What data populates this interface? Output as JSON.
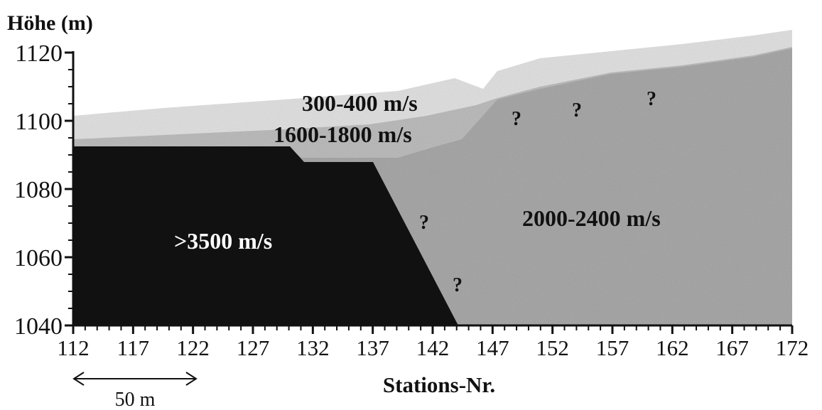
{
  "figure": {
    "y_axis_label": "Höhe (m)",
    "x_axis_label": "Stations-Nr.",
    "y_ticks": [
      1120,
      1100,
      1080,
      1060,
      1040
    ],
    "x_ticks": [
      112,
      117,
      122,
      127,
      132,
      137,
      142,
      147,
      152,
      157,
      162,
      167,
      172
    ],
    "scale_bar_label": "50 m",
    "colors": {
      "bedrock": "#111111",
      "layer_mid": "#bdbdbd",
      "layer_top": "#e2e2e2",
      "axis": "#111111"
    },
    "layers": [
      {
        "label": "300-400  m/s",
        "velocity_range": [
          300,
          400
        ]
      },
      {
        "label": "1600-1800  m/s",
        "velocity_range": [
          1600,
          1800
        ]
      },
      {
        "label": "2000-2400  m/s",
        "velocity_range": [
          2000,
          2400
        ]
      },
      {
        "label": ">3500  m/s",
        "velocity_range": [
          3500,
          null
        ]
      }
    ],
    "uncertainty_mark": "?"
  }
}
